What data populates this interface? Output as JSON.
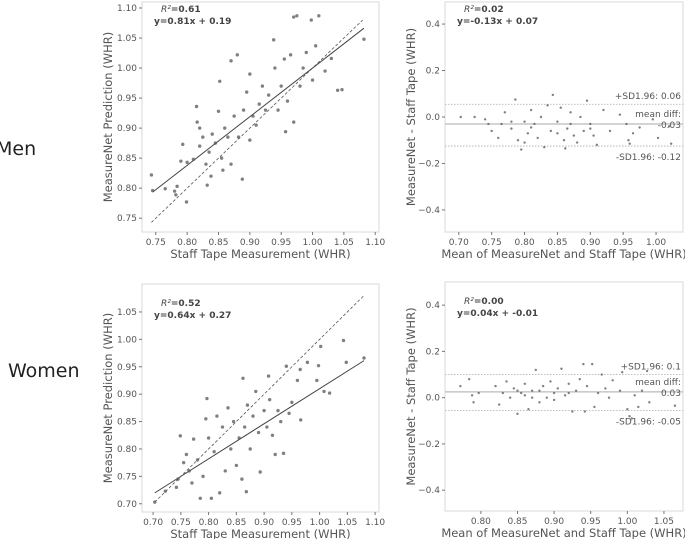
{
  "row_labels": [
    "Men",
    "Women"
  ],
  "chart_data": [
    {
      "type": "scatter",
      "row": "Men",
      "kind": "correlation",
      "xlabel": "Staff Tape Measurement (WHR)",
      "ylabel": "MeasureNet Prediction (WHR)",
      "xlim": [
        0.728,
        1.106
      ],
      "ylim": [
        0.727,
        1.11
      ],
      "xticks": [
        "0.75",
        "0.80",
        "0.85",
        "0.90",
        "0.95",
        "1.00",
        "1.05",
        "1.10"
      ],
      "yticks": [
        "0.75",
        "0.80",
        "0.85",
        "0.90",
        "0.95",
        "1.00",
        "1.05",
        "1.10"
      ],
      "r2_label": "R²",
      "r2_value": "=0.61",
      "equation": "y=0.81x + 0.19",
      "fit": {
        "slope": 0.81,
        "intercept": 0.19,
        "x_range": [
          0.745,
          1.082
        ]
      },
      "identity_range": [
        0.743,
        1.08
      ],
      "grid": false,
      "points": [
        [
          0.743,
          0.822
        ],
        [
          0.745,
          0.796
        ],
        [
          0.765,
          0.799
        ],
        [
          0.78,
          0.795
        ],
        [
          0.782,
          0.789
        ],
        [
          0.784,
          0.803
        ],
        [
          0.79,
          0.845
        ],
        [
          0.793,
          0.873
        ],
        [
          0.799,
          0.777
        ],
        [
          0.8,
          0.843
        ],
        [
          0.81,
          0.848
        ],
        [
          0.815,
          0.936
        ],
        [
          0.816,
          0.91
        ],
        [
          0.82,
          0.87
        ],
        [
          0.82,
          0.9
        ],
        [
          0.825,
          0.885
        ],
        [
          0.83,
          0.84
        ],
        [
          0.832,
          0.805
        ],
        [
          0.835,
          0.86
        ],
        [
          0.838,
          0.82
        ],
        [
          0.84,
          0.89
        ],
        [
          0.845,
          0.875
        ],
        [
          0.85,
          0.928
        ],
        [
          0.852,
          0.978
        ],
        [
          0.855,
          0.85
        ],
        [
          0.857,
          0.83
        ],
        [
          0.86,
          0.9
        ],
        [
          0.865,
          0.885
        ],
        [
          0.87,
          1.012
        ],
        [
          0.87,
          0.84
        ],
        [
          0.875,
          0.92
        ],
        [
          0.88,
          1.022
        ],
        [
          0.882,
          0.885
        ],
        [
          0.888,
          0.815
        ],
        [
          0.89,
          0.93
        ],
        [
          0.895,
          0.96
        ],
        [
          0.9,
          0.88
        ],
        [
          0.9,
          0.99
        ],
        [
          0.905,
          0.92
        ],
        [
          0.91,
          0.905
        ],
        [
          0.915,
          0.94
        ],
        [
          0.92,
          0.97
        ],
        [
          0.925,
          0.93
        ],
        [
          0.93,
          0.955
        ],
        [
          0.938,
          1.047
        ],
        [
          0.94,
          1.0
        ],
        [
          0.945,
          0.93
        ],
        [
          0.95,
          0.97
        ],
        [
          0.955,
          1.015
        ],
        [
          0.957,
          0.894
        ],
        [
          0.96,
          0.945
        ],
        [
          0.965,
          1.022
        ],
        [
          0.97,
          0.91
        ],
        [
          0.97,
          1.085
        ],
        [
          0.975,
          1.087
        ],
        [
          0.98,
          0.97
        ],
        [
          0.985,
          1.0
        ],
        [
          0.99,
          1.026
        ],
        [
          0.998,
          1.08
        ],
        [
          1.0,
          0.98
        ],
        [
          1.005,
          1.037
        ],
        [
          1.01,
          1.087
        ],
        [
          1.02,
          0.995
        ],
        [
          1.03,
          1.016
        ],
        [
          1.04,
          0.963
        ],
        [
          1.047,
          0.964
        ],
        [
          1.082,
          1.048
        ]
      ]
    },
    {
      "type": "scatter",
      "row": "Men",
      "kind": "bland-altman",
      "xlabel": "Mean of MeasureNet and Staff Tape (WHR)",
      "ylabel": "MeasureNet - Staff Tape (WHR)",
      "xlim": [
        0.679,
        1.041
      ],
      "ylim": [
        -0.495,
        0.495
      ],
      "xticks": [
        "0.70",
        "0.75",
        "0.80",
        "0.85",
        "0.90",
        "0.95",
        "1.00"
      ],
      "yticks": [
        "−0.4",
        "−0.2",
        "0.0",
        "0.2",
        "0.4"
      ],
      "r2_label": "R²",
      "r2_value": "=0.02",
      "equation": "y=-0.13x + 0.07",
      "mean_diff": -0.03,
      "upper_limit": 0.055,
      "lower_limit": -0.125,
      "upper_label": "+SD1.96: 0.06",
      "mean_label": "mean diff:",
      "mean_value_label": "-0.03",
      "lower_label": "-SD1.96: -0.12",
      "grid": false,
      "points": [
        [
          0.703,
          0.0
        ],
        [
          0.724,
          0.0
        ],
        [
          0.74,
          -0.01
        ],
        [
          0.745,
          -0.03
        ],
        [
          0.75,
          -0.06
        ],
        [
          0.76,
          -0.09
        ],
        [
          0.765,
          -0.03
        ],
        [
          0.77,
          0.02
        ],
        [
          0.78,
          -0.05
        ],
        [
          0.786,
          0.075
        ],
        [
          0.79,
          -0.1
        ],
        [
          0.795,
          -0.14
        ],
        [
          0.8,
          -0.11
        ],
        [
          0.805,
          -0.07
        ],
        [
          0.81,
          0.03
        ],
        [
          0.815,
          -0.03
        ],
        [
          0.82,
          -0.09
        ],
        [
          0.825,
          0.0
        ],
        [
          0.83,
          -0.13
        ],
        [
          0.835,
          0.05
        ],
        [
          0.84,
          -0.06
        ],
        [
          0.843,
          0.095
        ],
        [
          0.85,
          -0.02
        ],
        [
          0.855,
          0.04
        ],
        [
          0.86,
          -0.1
        ],
        [
          0.862,
          -0.135
        ],
        [
          0.865,
          -0.05
        ],
        [
          0.87,
          0.02
        ],
        [
          0.875,
          -0.08
        ],
        [
          0.88,
          -0.11
        ],
        [
          0.885,
          0.0
        ],
        [
          0.89,
          -0.06
        ],
        [
          0.895,
          0.07
        ],
        [
          0.9,
          -0.03
        ],
        [
          0.905,
          -0.08
        ],
        [
          0.91,
          -0.12
        ],
        [
          0.92,
          0.03
        ],
        [
          0.93,
          -0.06
        ],
        [
          0.945,
          0.01
        ],
        [
          0.955,
          -0.03
        ],
        [
          0.958,
          -0.1
        ],
        [
          0.96,
          -0.115
        ],
        [
          0.965,
          -0.07
        ],
        [
          0.975,
          -0.045
        ],
        [
          0.995,
          -0.01
        ],
        [
          1.003,
          -0.09
        ],
        [
          1.02,
          -0.04
        ],
        [
          1.023,
          -0.115
        ],
        [
          0.81,
          -0.045
        ],
        [
          0.85,
          -0.07
        ],
        [
          0.87,
          -0.03
        ],
        [
          0.9,
          -0.05
        ],
        [
          0.78,
          -0.02
        ],
        [
          0.8,
          -0.02
        ]
      ]
    },
    {
      "type": "scatter",
      "row": "Women",
      "kind": "correlation",
      "xlabel": "Staff Tape Measurement (WHR)",
      "ylabel": "MeasureNet Prediction (WHR)",
      "xlim": [
        0.68,
        1.107
      ],
      "ylim": [
        0.685,
        1.101
      ],
      "xticks": [
        "0.70",
        "0.75",
        "0.80",
        "0.85",
        "0.90",
        "0.95",
        "1.00",
        "1.05",
        "1.10"
      ],
      "yticks": [
        "0.70",
        "0.75",
        "0.80",
        "0.85",
        "0.90",
        "0.95",
        "1.00",
        "1.05"
      ],
      "r2_label": "R²",
      "r2_value": "=0.52",
      "equation": "y=0.64x + 0.27",
      "fit": {
        "slope": 0.64,
        "intercept": 0.27,
        "x_range": [
          0.703,
          1.08
        ]
      },
      "identity_range": [
        0.703,
        1.08
      ],
      "grid": false,
      "points": [
        [
          0.703,
          0.703
        ],
        [
          0.722,
          0.723
        ],
        [
          0.742,
          0.73
        ],
        [
          0.745,
          0.745
        ],
        [
          0.749,
          0.824
        ],
        [
          0.755,
          0.775
        ],
        [
          0.76,
          0.79
        ],
        [
          0.765,
          0.76
        ],
        [
          0.77,
          0.738
        ],
        [
          0.773,
          0.818
        ],
        [
          0.78,
          0.78
        ],
        [
          0.785,
          0.71
        ],
        [
          0.79,
          0.75
        ],
        [
          0.795,
          0.855
        ],
        [
          0.797,
          0.892
        ],
        [
          0.8,
          0.82
        ],
        [
          0.805,
          0.71
        ],
        [
          0.81,
          0.795
        ],
        [
          0.815,
          0.86
        ],
        [
          0.82,
          0.72
        ],
        [
          0.825,
          0.84
        ],
        [
          0.83,
          0.76
        ],
        [
          0.835,
          0.875
        ],
        [
          0.84,
          0.8
        ],
        [
          0.845,
          0.85
        ],
        [
          0.85,
          0.77
        ],
        [
          0.855,
          0.82
        ],
        [
          0.86,
          0.745
        ],
        [
          0.862,
          0.929
        ],
        [
          0.865,
          0.84
        ],
        [
          0.868,
          0.722
        ],
        [
          0.87,
          0.88
        ],
        [
          0.875,
          0.8
        ],
        [
          0.88,
          0.86
        ],
        [
          0.885,
          0.905
        ],
        [
          0.89,
          0.83
        ],
        [
          0.893,
          0.758
        ],
        [
          0.9,
          0.87
        ],
        [
          0.905,
          0.84
        ],
        [
          0.908,
          0.933
        ],
        [
          0.91,
          0.89
        ],
        [
          0.915,
          0.825
        ],
        [
          0.92,
          0.79
        ],
        [
          0.925,
          0.87
        ],
        [
          0.93,
          0.85
        ],
        [
          0.935,
          0.792
        ],
        [
          0.94,
          0.951
        ],
        [
          0.945,
          0.865
        ],
        [
          0.95,
          0.885
        ],
        [
          0.96,
          0.925
        ],
        [
          0.965,
          0.945
        ],
        [
          0.966,
          0.853
        ],
        [
          0.978,
          0.958
        ],
        [
          0.995,
          0.925
        ],
        [
          0.998,
          0.952
        ],
        [
          1.002,
          0.987
        ],
        [
          1.008,
          0.905
        ],
        [
          1.018,
          0.902
        ],
        [
          1.043,
          0.998
        ],
        [
          1.048,
          0.958
        ],
        [
          1.08,
          0.966
        ]
      ]
    },
    {
      "type": "scatter",
      "row": "Women",
      "kind": "bland-altman",
      "xlabel": "Mean of MeasureNet and Staff Tape (WHR)",
      "ylabel": "MeasureNet - Staff Tape (WHR)",
      "xlim": [
        0.751,
        1.076
      ],
      "ylim": [
        -0.49,
        0.5
      ],
      "xticks": [
        "0.80",
        "0.85",
        "0.90",
        "0.95",
        "1.00",
        "1.05"
      ],
      "yticks": [
        "−0.4",
        "−0.2",
        "0.0",
        "0.2",
        "0.4"
      ],
      "r2_label": "R²",
      "r2_value": "=0.00",
      "equation": "y=0.04x + -0.01",
      "mean_diff": 0.025,
      "upper_limit": 0.1,
      "lower_limit": -0.055,
      "upper_label": "+SD1.96: 0.1",
      "mean_label": "mean diff:",
      "mean_value_label": "0.03",
      "lower_label": "-SD1.96: -0.05",
      "grid": false,
      "points": [
        [
          0.772,
          0.05
        ],
        [
          0.784,
          0.08
        ],
        [
          0.788,
          0.01
        ],
        [
          0.79,
          -0.02
        ],
        [
          0.797,
          0.02
        ],
        [
          0.82,
          0.05
        ],
        [
          0.825,
          -0.03
        ],
        [
          0.83,
          0.02
        ],
        [
          0.835,
          0.07
        ],
        [
          0.84,
          0.0
        ],
        [
          0.845,
          0.04
        ],
        [
          0.85,
          -0.07
        ],
        [
          0.855,
          0.02
        ],
        [
          0.86,
          0.06
        ],
        [
          0.865,
          -0.05
        ],
        [
          0.87,
          0.03
        ],
        [
          0.875,
          0.12
        ],
        [
          0.88,
          -0.02
        ],
        [
          0.885,
          0.05
        ],
        [
          0.89,
          0.0
        ],
        [
          0.895,
          0.07
        ],
        [
          0.9,
          0.02
        ],
        [
          0.905,
          0.04
        ],
        [
          0.91,
          0.125
        ],
        [
          0.915,
          0.01
        ],
        [
          0.92,
          0.06
        ],
        [
          0.925,
          -0.06
        ],
        [
          0.93,
          0.03
        ],
        [
          0.935,
          0.08
        ],
        [
          0.94,
          0.145
        ],
        [
          0.942,
          -0.06
        ],
        [
          0.945,
          0.05
        ],
        [
          0.952,
          0.145
        ],
        [
          0.955,
          -0.04
        ],
        [
          0.96,
          0.02
        ],
        [
          0.965,
          0.1
        ],
        [
          0.97,
          0.04
        ],
        [
          0.975,
          0.0
        ],
        [
          0.98,
          0.075
        ],
        [
          0.99,
          0.03
        ],
        [
          0.993,
          0.11
        ],
        [
          1.0,
          -0.05
        ],
        [
          1.003,
          -0.08
        ],
        [
          1.006,
          -0.09
        ],
        [
          1.01,
          0.01
        ],
        [
          1.015,
          -0.04
        ],
        [
          1.02,
          0.03
        ],
        [
          1.027,
          0.115
        ],
        [
          1.03,
          -0.02
        ],
        [
          1.065,
          -0.035
        ],
        [
          0.86,
          0.01
        ],
        [
          0.88,
          0.03
        ],
        [
          0.9,
          -0.01
        ],
        [
          0.92,
          0.02
        ],
        [
          0.85,
          0.03
        ],
        [
          0.87,
          0.0
        ]
      ]
    }
  ]
}
